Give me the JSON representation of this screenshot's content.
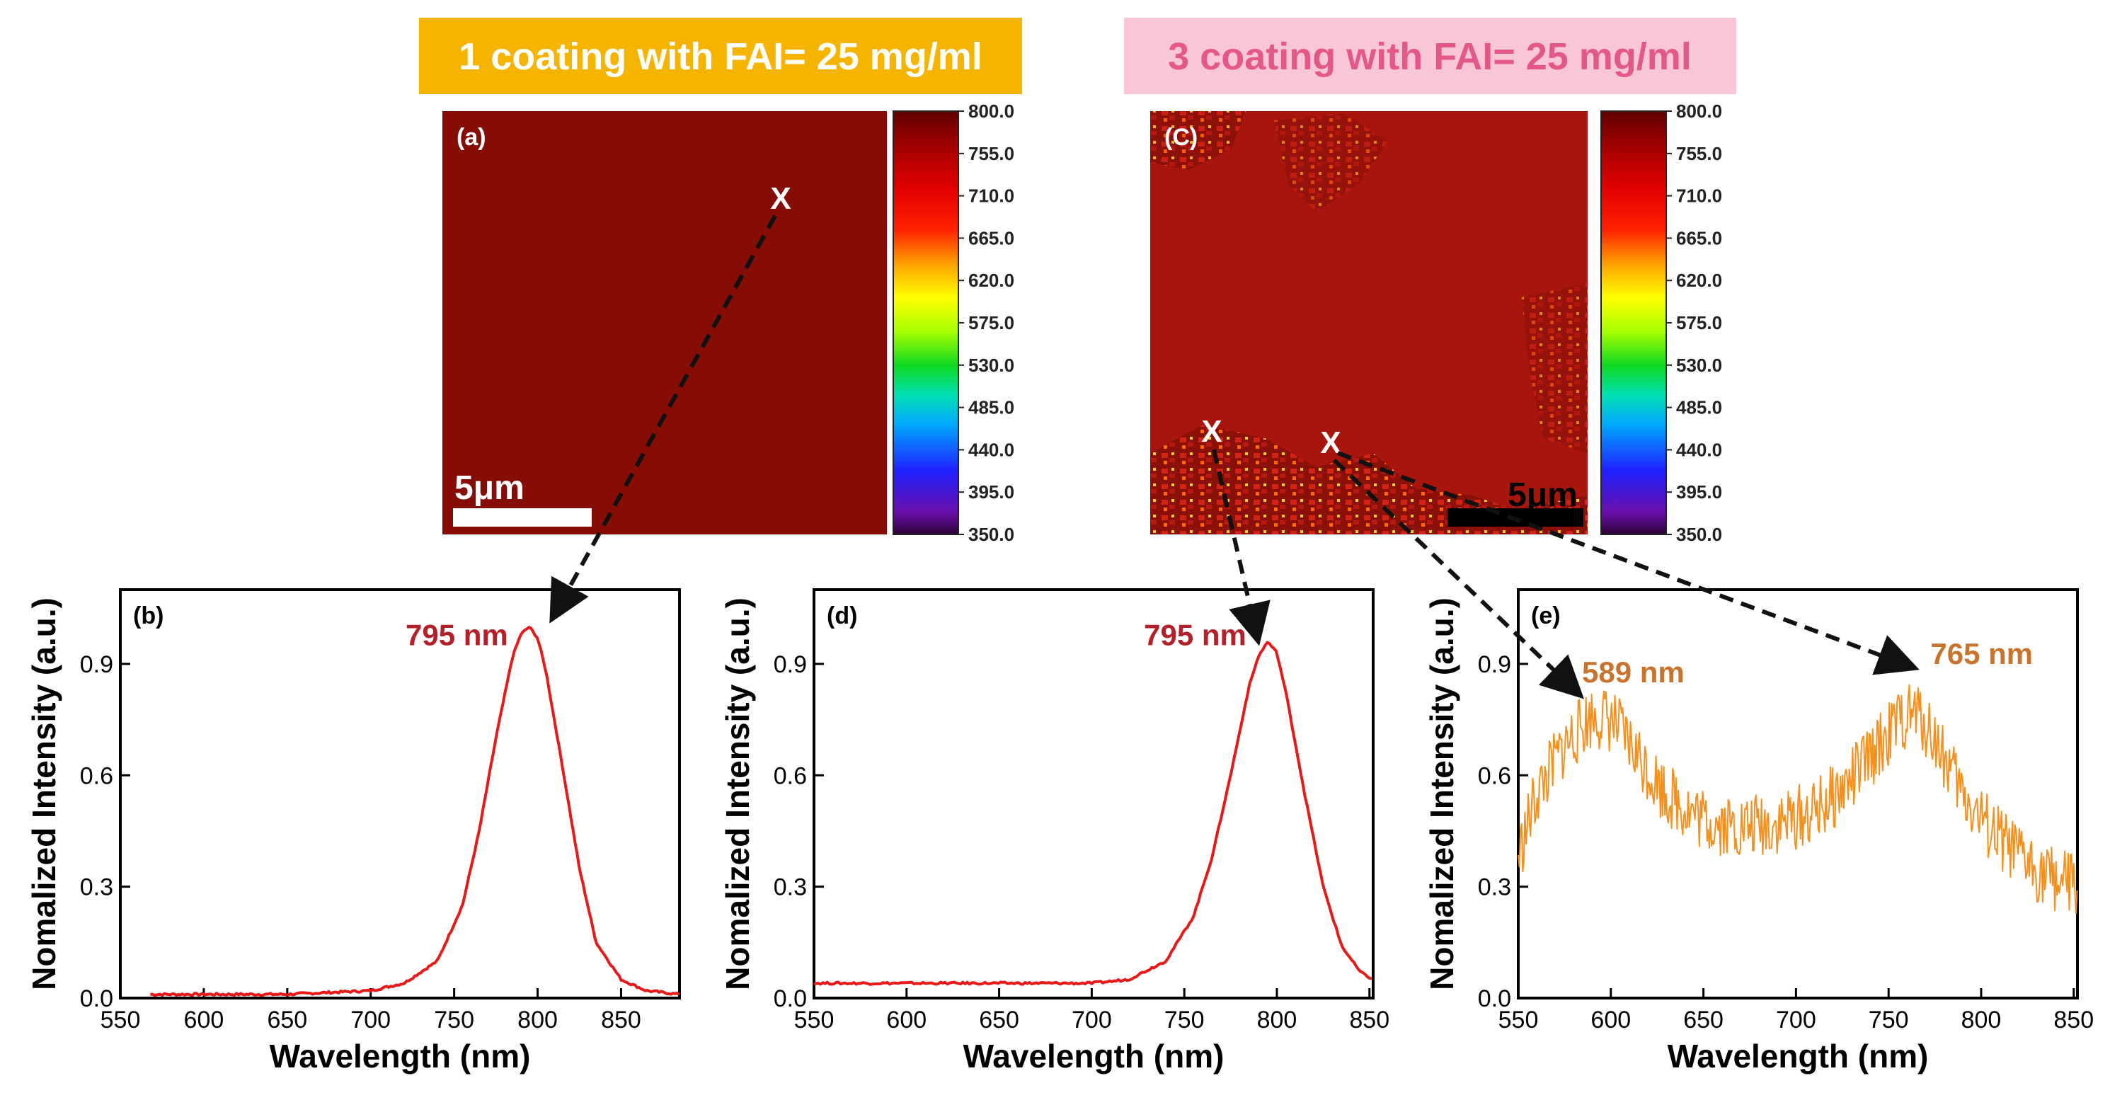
{
  "colors": {
    "title_a_bg": "#F5B400",
    "title_c_bg": "#F8C6D4",
    "title_c_text": "#E3578A",
    "spectrum_red": "#E81919",
    "spectrum_orange": "#F39120",
    "label_red": "#B3202A",
    "label_orange": "#C8742E"
  },
  "titles": {
    "left": "1 coating with FAI= 25 mg/ml",
    "right": "3 coating with FAI= 25 mg/ml"
  },
  "maps": [
    {
      "label": "(a)",
      "scale_text": "5μm",
      "scale_bar_color": "#ffffff",
      "marker": "X",
      "colorbar_ticks": [
        "800.0",
        "755.0",
        "710.0",
        "665.0",
        "620.0",
        "575.0",
        "530.0",
        "485.0",
        "440.0",
        "395.0",
        "350.0"
      ]
    },
    {
      "label": "(C)",
      "scale_text": "5μm",
      "scale_bar_color": "#000000",
      "markers": [
        "X",
        "X"
      ],
      "colorbar_ticks": [
        "800.0",
        "755.0",
        "710.0",
        "665.0",
        "620.0",
        "575.0",
        "530.0",
        "485.0",
        "440.0",
        "395.0",
        "350.0"
      ]
    }
  ],
  "chart_data": [
    {
      "type": "line",
      "label": "(b)",
      "xlabel": "Wavelength (nm)",
      "ylabel": "Nomalized Intensity (a.u.)",
      "xlim": [
        550,
        885
      ],
      "ylim": [
        0,
        1.1
      ],
      "xticks": [
        550,
        600,
        650,
        700,
        750,
        800,
        850
      ],
      "yticks": [
        0.0,
        0.3,
        0.6,
        0.9
      ],
      "series": [
        {
          "name": "spectrum",
          "color": "#E81919",
          "x": [
            568,
            600,
            650,
            700,
            720,
            740,
            755,
            765,
            775,
            785,
            790,
            795,
            800,
            805,
            815,
            825,
            835,
            850,
            865,
            885
          ],
          "y": [
            0.01,
            0.01,
            0.01,
            0.02,
            0.04,
            0.1,
            0.25,
            0.45,
            0.7,
            0.92,
            0.98,
            1.0,
            0.97,
            0.88,
            0.62,
            0.35,
            0.15,
            0.05,
            0.02,
            0.01
          ]
        }
      ],
      "annotations": [
        {
          "text": "795 nm",
          "x": 795,
          "y": 0.95
        }
      ]
    },
    {
      "type": "line",
      "label": "(d)",
      "xlabel": "Wavelength (nm)",
      "ylabel": "Nomalized Intensity (a.u.)",
      "xlim": [
        550,
        852
      ],
      "ylim": [
        0,
        1.1
      ],
      "xticks": [
        550,
        600,
        650,
        700,
        750,
        800,
        850
      ],
      "yticks": [
        0.0,
        0.3,
        0.6,
        0.9
      ],
      "series": [
        {
          "name": "spectrum",
          "color": "#E81919",
          "x": [
            550,
            600,
            650,
            700,
            720,
            740,
            755,
            765,
            775,
            785,
            790,
            795,
            800,
            805,
            815,
            825,
            835,
            845,
            852
          ],
          "y": [
            0.04,
            0.04,
            0.04,
            0.04,
            0.05,
            0.1,
            0.22,
            0.38,
            0.6,
            0.84,
            0.92,
            0.96,
            0.93,
            0.82,
            0.55,
            0.3,
            0.14,
            0.07,
            0.05
          ]
        }
      ],
      "annotations": [
        {
          "text": "795 nm",
          "x": 795,
          "y": 0.95
        }
      ]
    },
    {
      "type": "line",
      "label": "(e)",
      "xlabel": "Wavelength (nm)",
      "ylabel": "Nomalized Intensity (a.u.)",
      "xlim": [
        550,
        852
      ],
      "ylim": [
        0,
        1.1
      ],
      "xticks": [
        550,
        600,
        650,
        700,
        750,
        800,
        850
      ],
      "yticks": [
        0.0,
        0.3,
        0.6,
        0.9
      ],
      "noise": 0.08,
      "series": [
        {
          "name": "spectrum",
          "color": "#F39120",
          "x": [
            550,
            560,
            575,
            590,
            600,
            615,
            630,
            650,
            670,
            690,
            710,
            725,
            740,
            755,
            765,
            775,
            790,
            805,
            820,
            835,
            852
          ],
          "y": [
            0.38,
            0.55,
            0.68,
            0.76,
            0.75,
            0.65,
            0.55,
            0.48,
            0.46,
            0.47,
            0.5,
            0.56,
            0.65,
            0.74,
            0.77,
            0.7,
            0.55,
            0.45,
            0.38,
            0.33,
            0.3
          ]
        }
      ],
      "annotations": [
        {
          "text": "589 nm",
          "x": 589,
          "y": 0.85
        },
        {
          "text": "765 nm",
          "x": 765,
          "y": 0.9
        }
      ]
    }
  ]
}
